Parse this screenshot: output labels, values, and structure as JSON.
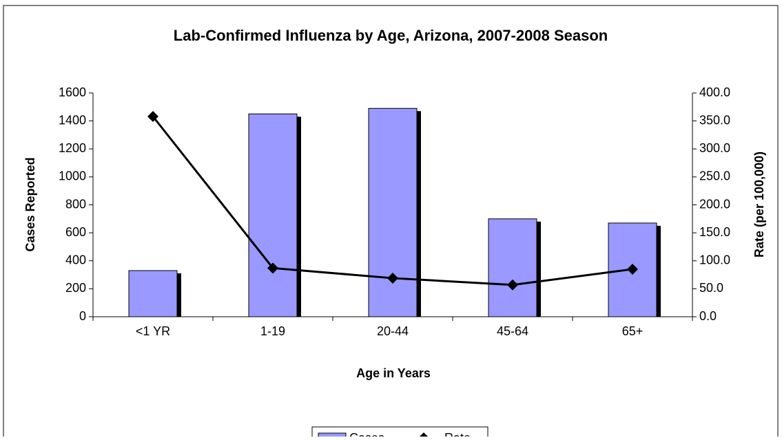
{
  "chart_data": {
    "type": "bar-line",
    "title": "Lab-Confirmed Influenza by Age, Arizona, 2007-2008 Season",
    "xlabel": "Age in Years",
    "ylabel": "Cases Reported",
    "y2label": "Rate (per 100,000)",
    "categories": [
      "<1 YR",
      "1-19",
      "20-44",
      "45-64",
      "65+"
    ],
    "series": [
      {
        "name": "Cases",
        "type": "bar",
        "color": "#9999ff",
        "values": [
          330,
          1450,
          1490,
          700,
          670
        ]
      },
      {
        "name": "Rate",
        "type": "line",
        "axis": "y2",
        "color": "#000000",
        "values": [
          358,
          87,
          69,
          57,
          85
        ]
      }
    ],
    "ylim": [
      0,
      1600
    ],
    "yticks": [
      0,
      200,
      400,
      600,
      800,
      1000,
      1200,
      1400,
      1600
    ],
    "y2lim": [
      0,
      400
    ],
    "y2ticks": [
      {
        "value": 0,
        "label": "0.0"
      },
      {
        "value": 50,
        "label": "50.0"
      },
      {
        "value": 100,
        "label": "100.0"
      },
      {
        "value": 150,
        "label": "150.0"
      },
      {
        "value": 200,
        "label": "200.0"
      },
      {
        "value": 250,
        "label": "250.0"
      },
      {
        "value": 300,
        "label": "300.0"
      },
      {
        "value": 350,
        "label": "350.0"
      },
      {
        "value": 400,
        "label": "400.0"
      }
    ],
    "legend": "bottom"
  }
}
